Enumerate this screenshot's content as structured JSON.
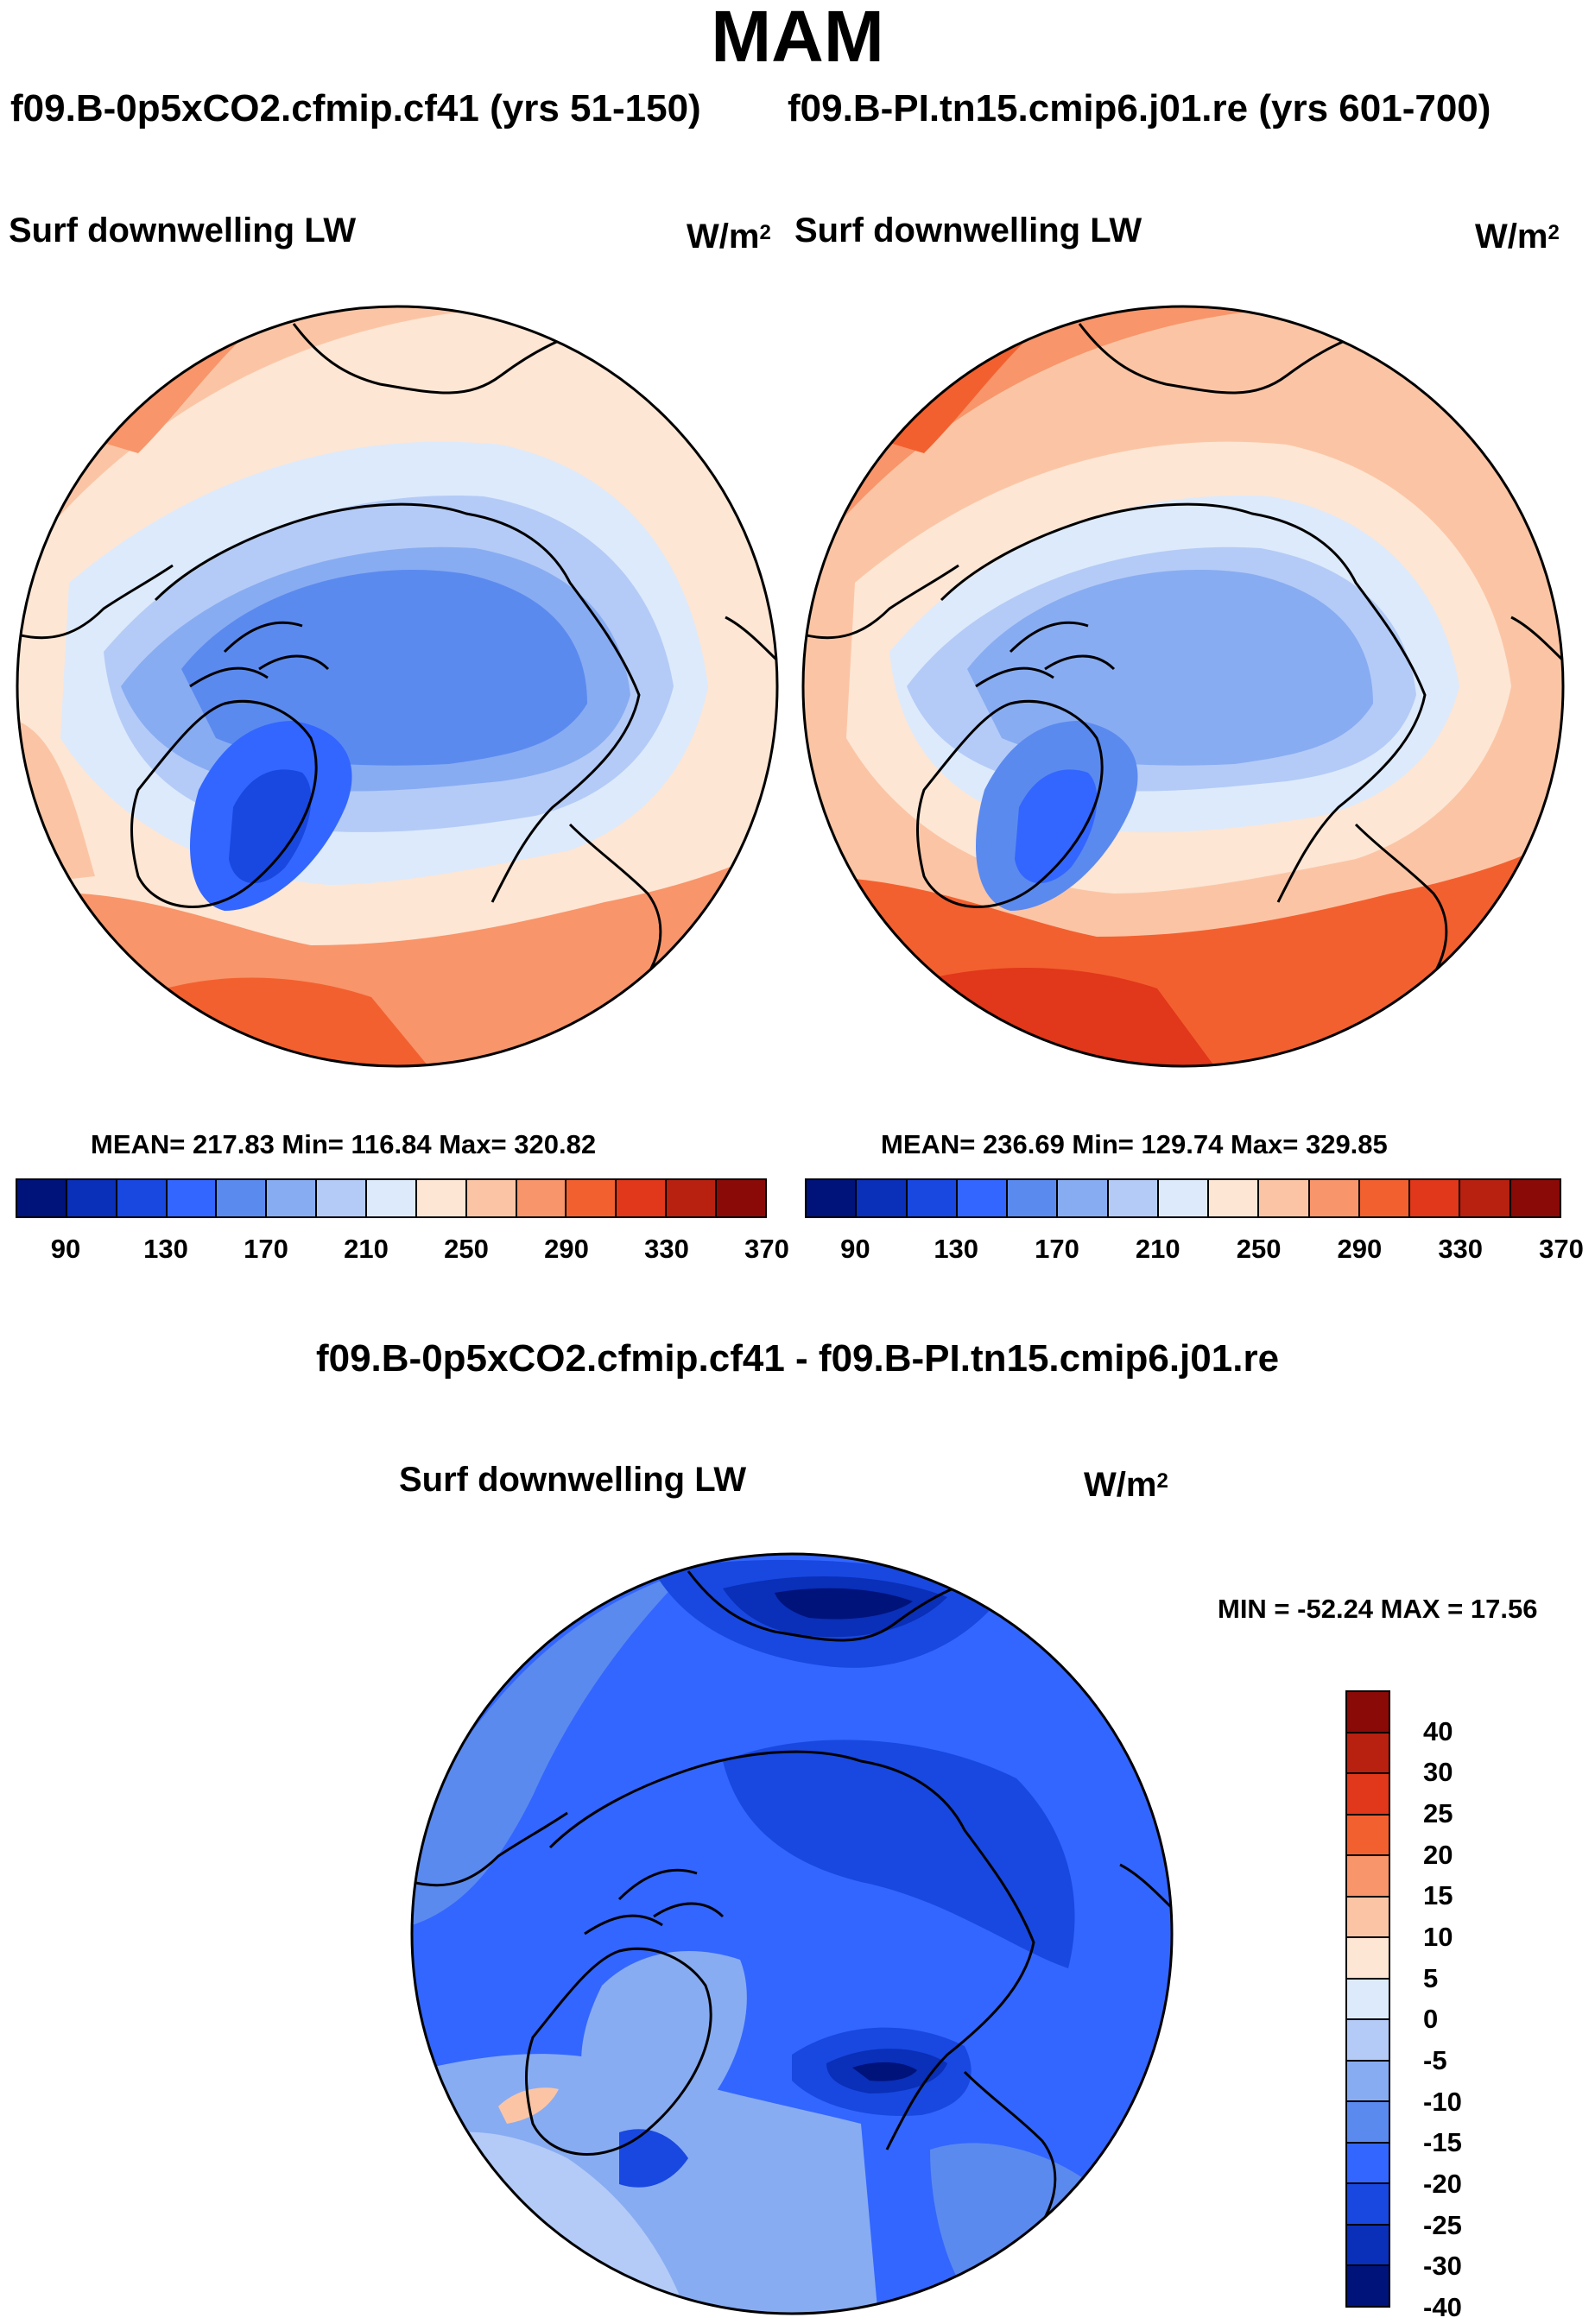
{
  "title": "MAM",
  "panels": {
    "left": {
      "case_label": "f09.B-0p5xCO2.cfmip.cf41 (yrs 51-150)",
      "field": "Surf downwelling LW",
      "units_base": "W/m",
      "units_exp": "2",
      "stats": "MEAN= 217.83  Min= 116.84  Max= 320.82",
      "map_name": "Arctic polar stereographic map of surface downwelling longwave, left case"
    },
    "right": {
      "case_label": "f09.B-PI.tn15.cmip6.j01.re (yrs 601-700)",
      "field": "Surf downwelling LW",
      "units_base": "W/m",
      "units_exp": "2",
      "stats": "MEAN= 236.69  Min= 129.74  Max= 329.85",
      "map_name": "Arctic polar stereographic map of surface downwelling longwave, right case"
    },
    "diff": {
      "case_label": "f09.B-0p5xCO2.cfmip.cf41 - f09.B-PI.tn15.cmip6.j01.re",
      "field": "Surf downwelling LW",
      "units_base": "W/m",
      "units_exp": "2",
      "stats": "MIN = -52.24 MAX =  17.56",
      "map_name": "Arctic polar stereographic map of difference in surface downwelling longwave"
    }
  },
  "colorbars": {
    "abs": {
      "colors": [
        "#00137a",
        "#0a2fb8",
        "#1848e0",
        "#3366ff",
        "#5b8aef",
        "#88acf2",
        "#b4cbf7",
        "#ddeafb",
        "#fde6d4",
        "#fbc5a5",
        "#f8956a",
        "#f3602f",
        "#e1371a",
        "#b82010",
        "#8a0a08"
      ],
      "tick_labels": [
        "90",
        "130",
        "170",
        "210",
        "250",
        "290",
        "330",
        "370"
      ]
    },
    "diff": {
      "colors": [
        "#8a0a08",
        "#b82010",
        "#e1371a",
        "#f3602f",
        "#f8956a",
        "#fbc5a5",
        "#fde6d4",
        "#ddeafb",
        "#b4cbf7",
        "#88acf2",
        "#5b8aef",
        "#3366ff",
        "#1848e0",
        "#0a2fb8",
        "#00137a"
      ],
      "tick_labels": [
        "40",
        "30",
        "25",
        "20",
        "15",
        "10",
        "5",
        "0",
        "-5",
        "-10",
        "-15",
        "-20",
        "-25",
        "-30",
        "-40"
      ]
    }
  }
}
